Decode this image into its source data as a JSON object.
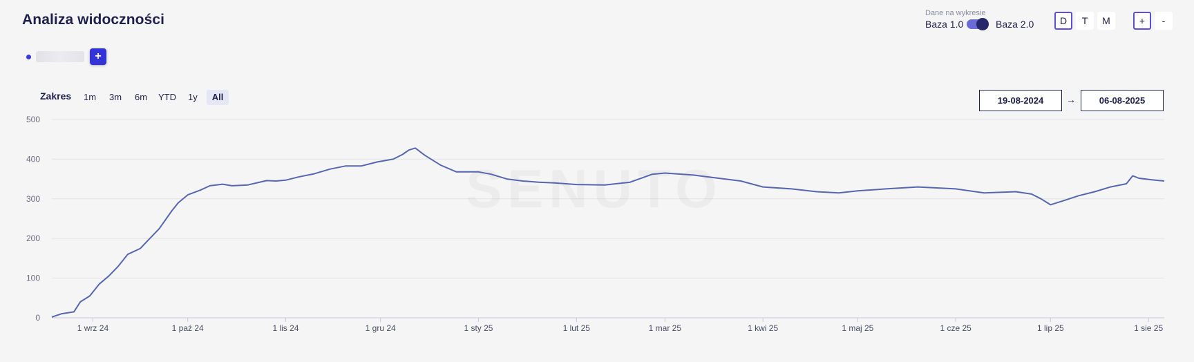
{
  "header": {
    "title": "Analiza widoczności",
    "data_caption": "Dane na wykresie",
    "base_a": "Baza 1.0",
    "base_b": "Baza 2.0",
    "granularity": [
      "D",
      "T",
      "M"
    ],
    "granularity_selected": "D",
    "zoom_in": "+",
    "zoom_out": "-"
  },
  "legend": {
    "add_label": "+"
  },
  "range": {
    "label": "Zakres",
    "options": [
      "1m",
      "3m",
      "6m",
      "YTD",
      "1y",
      "All"
    ],
    "selected": "All",
    "from": "19-08-2024",
    "arrow": "→",
    "to": "06-08-2025"
  },
  "colors": {
    "line": "#5566b0",
    "accent": "#3434d6",
    "text": "#1e1f4b"
  },
  "chart_data": {
    "type": "line",
    "watermark": "SENUTO",
    "ylim": [
      0,
      500
    ],
    "yticks": [
      0,
      100,
      200,
      300,
      400,
      500
    ],
    "xlim": [
      "2024-08-19",
      "2025-08-06"
    ],
    "xticks": [
      {
        "label": "1 wrz 24",
        "date": "2024-09-01"
      },
      {
        "label": "1 paź 24",
        "date": "2024-10-01"
      },
      {
        "label": "1 lis 24",
        "date": "2024-11-01"
      },
      {
        "label": "1 gru 24",
        "date": "2024-12-01"
      },
      {
        "label": "1 sty 25",
        "date": "2025-01-01"
      },
      {
        "label": "1 lut 25",
        "date": "2025-02-01"
      },
      {
        "label": "1 mar 25",
        "date": "2025-03-01"
      },
      {
        "label": "1 kwi 25",
        "date": "2025-04-01"
      },
      {
        "label": "1 maj 25",
        "date": "2025-05-01"
      },
      {
        "label": "1 cze 25",
        "date": "2025-06-01"
      },
      {
        "label": "1 lip 25",
        "date": "2025-07-01"
      },
      {
        "label": "1 sie 25",
        "date": "2025-08-01"
      }
    ],
    "grid": true,
    "series": [
      {
        "x": [
          "2024-08-19",
          "2024-08-22",
          "2024-08-26",
          "2024-08-28",
          "2024-08-31",
          "2024-09-03",
          "2024-09-06",
          "2024-09-09",
          "2024-09-12",
          "2024-09-16",
          "2024-09-19",
          "2024-09-22",
          "2024-09-26",
          "2024-09-28",
          "2024-10-01",
          "2024-10-05",
          "2024-10-08",
          "2024-10-12",
          "2024-10-15",
          "2024-10-20",
          "2024-10-26",
          "2024-10-29",
          "2024-11-01",
          "2024-11-05",
          "2024-11-10",
          "2024-11-15",
          "2024-11-20",
          "2024-11-25",
          "2024-11-30",
          "2024-12-05",
          "2024-12-08",
          "2024-12-10",
          "2024-12-12",
          "2024-12-15",
          "2024-12-20",
          "2024-12-25",
          "2025-01-01",
          "2025-01-05",
          "2025-01-10",
          "2025-01-15",
          "2025-01-20",
          "2025-01-25",
          "2025-02-01",
          "2025-02-10",
          "2025-02-18",
          "2025-02-25",
          "2025-03-01",
          "2025-03-10",
          "2025-03-18",
          "2025-03-25",
          "2025-04-01",
          "2025-04-10",
          "2025-04-18",
          "2025-04-25",
          "2025-05-01",
          "2025-05-10",
          "2025-05-20",
          "2025-06-01",
          "2025-06-10",
          "2025-06-20",
          "2025-06-25",
          "2025-06-28",
          "2025-07-01",
          "2025-07-05",
          "2025-07-10",
          "2025-07-15",
          "2025-07-20",
          "2025-07-25",
          "2025-07-27",
          "2025-07-29",
          "2025-08-02",
          "2025-08-06"
        ],
        "y": [
          2,
          10,
          15,
          40,
          55,
          85,
          105,
          130,
          160,
          175,
          200,
          225,
          270,
          290,
          310,
          322,
          333,
          337,
          333,
          335,
          346,
          345,
          347,
          355,
          363,
          375,
          383,
          383,
          393,
          400,
          412,
          423,
          428,
          410,
          385,
          368,
          368,
          362,
          350,
          345,
          342,
          340,
          336,
          335,
          342,
          362,
          365,
          360,
          352,
          345,
          330,
          325,
          318,
          315,
          320,
          325,
          330,
          325,
          315,
          318,
          312,
          300,
          285,
          295,
          308,
          318,
          330,
          338,
          358,
          352,
          348,
          345
        ]
      }
    ]
  }
}
